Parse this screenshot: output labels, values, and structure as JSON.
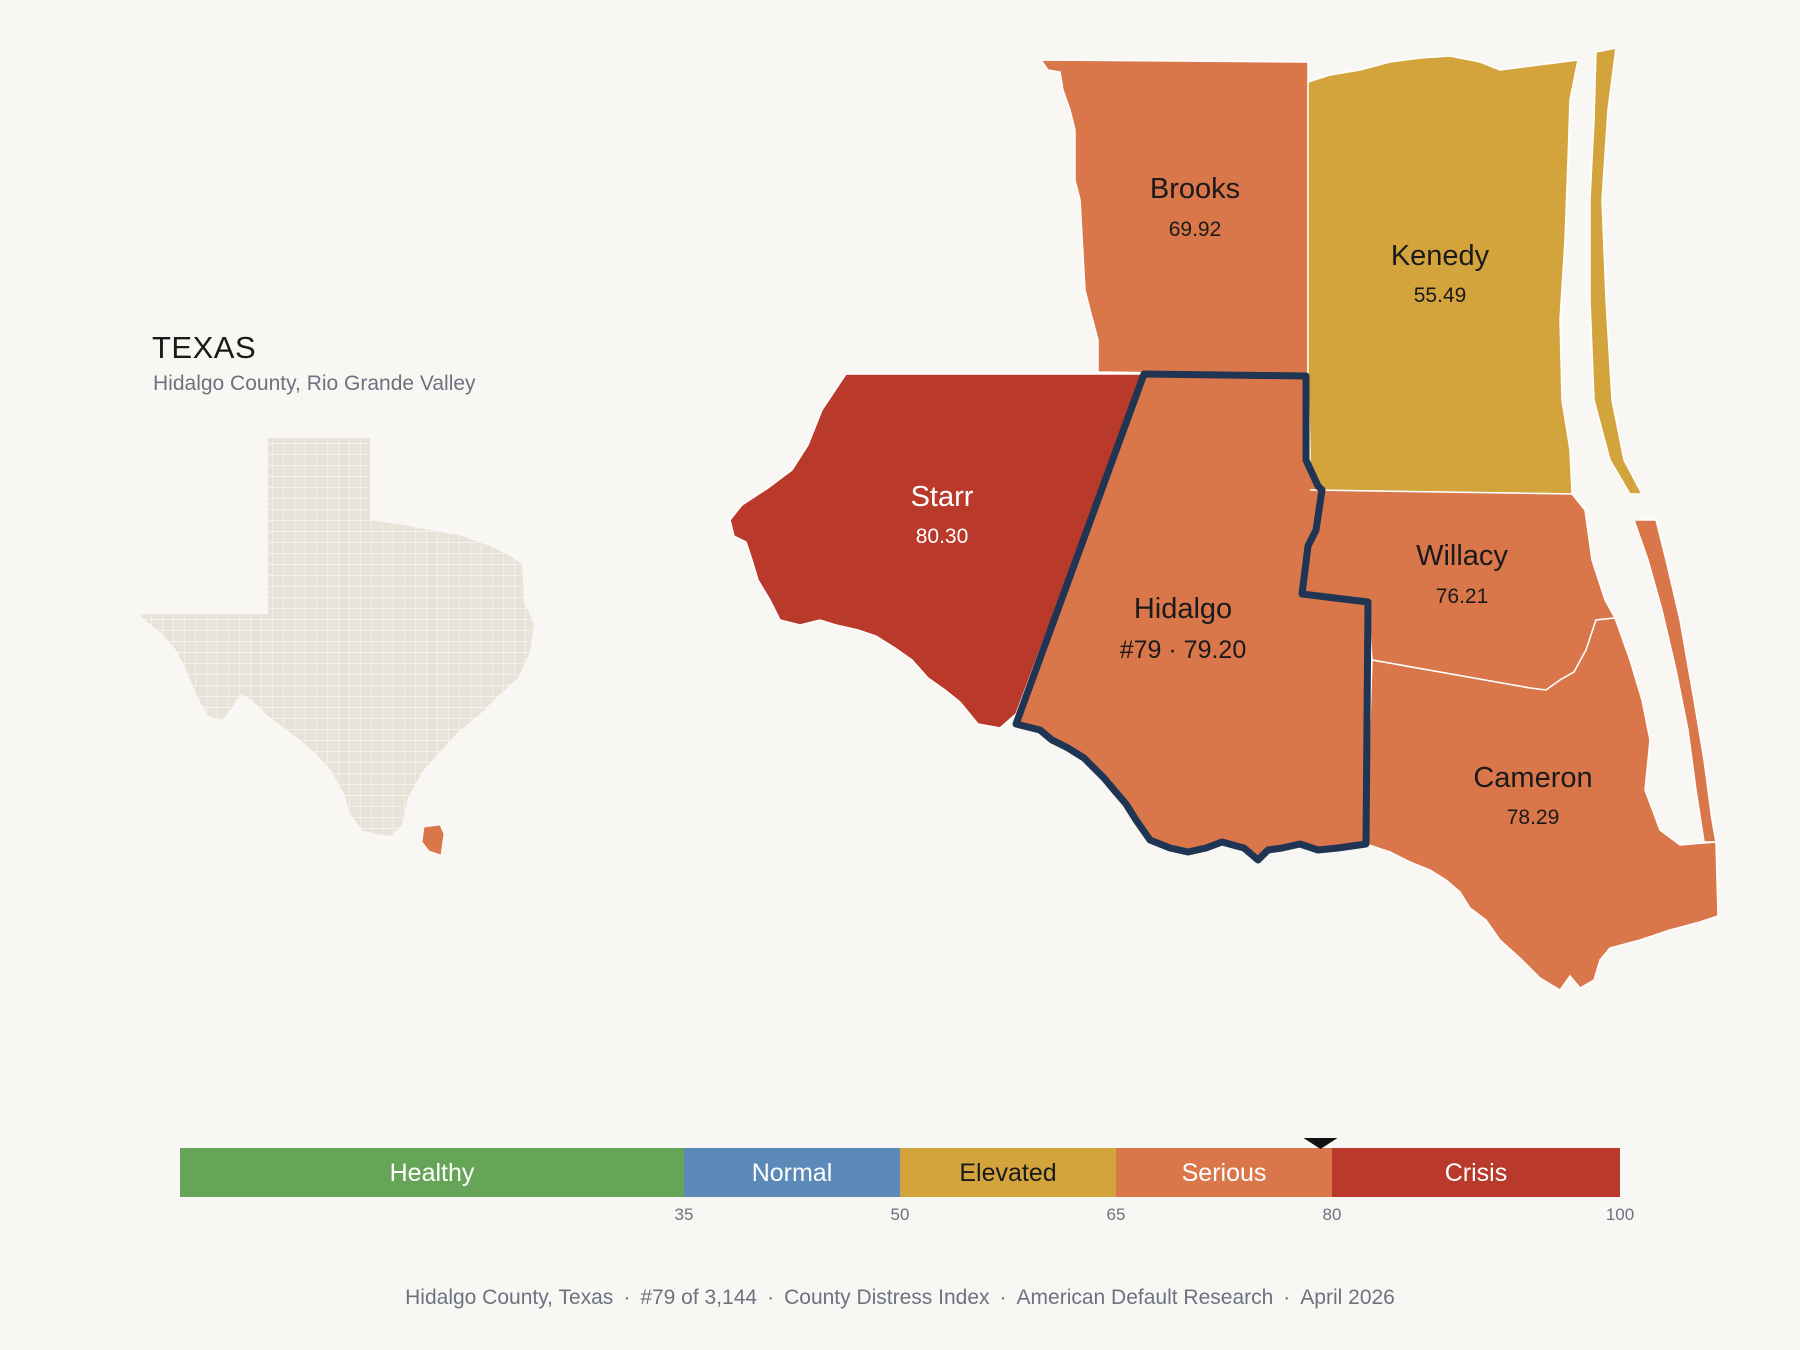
{
  "inset": {
    "state": "TEXAS",
    "subtitle": "Hidalgo County, Rio Grande Valley",
    "highlight_color": "#d9764a",
    "base_color": "#e8e2d8"
  },
  "counties": [
    {
      "id": "brooks",
      "name": "Brooks",
      "score": "69.92",
      "band": "Serious",
      "color": "#d9764a"
    },
    {
      "id": "kenedy",
      "name": "Kenedy",
      "score": "55.49",
      "band": "Elevated",
      "color": "#d4a43c"
    },
    {
      "id": "starr",
      "name": "Starr",
      "score": "80.30",
      "band": "Crisis",
      "color": "#b93a2b"
    },
    {
      "id": "hidalgo",
      "name": "Hidalgo",
      "score": "#79 · 79.20",
      "band": "Serious",
      "color": "#d9764a",
      "highlighted": true
    },
    {
      "id": "willacy",
      "name": "Willacy",
      "score": "76.21",
      "band": "Serious",
      "color": "#d9764a"
    },
    {
      "id": "cameron",
      "name": "Cameron",
      "score": "78.29",
      "band": "Serious",
      "color": "#d9764a"
    }
  ],
  "highlight_outline_color": "#1f3553",
  "legend": {
    "bands": [
      {
        "label": "Healthy",
        "min": 0,
        "max": 35,
        "color": "#66a558",
        "text_color": "#ffffff"
      },
      {
        "label": "Normal",
        "min": 35,
        "max": 50,
        "color": "#5b8ab8",
        "text_color": "#ffffff"
      },
      {
        "label": "Elevated",
        "min": 50,
        "max": 65,
        "color": "#d4a43c",
        "text_color": "#1a1a1a"
      },
      {
        "label": "Serious",
        "min": 65,
        "max": 80,
        "color": "#d9764a",
        "text_color": "#ffffff"
      },
      {
        "label": "Crisis",
        "min": 80,
        "max": 100,
        "color": "#b93a2b",
        "text_color": "#ffffff"
      }
    ],
    "ticks": [
      "35",
      "50",
      "65",
      "80",
      "100"
    ],
    "marker_value": 79.2
  },
  "footer": {
    "county": "Hidalgo County, Texas",
    "rank": "#79 of 3,144",
    "index": "County Distress Index",
    "org": "American Default Research",
    "date": "April 2026",
    "separator": "·"
  }
}
